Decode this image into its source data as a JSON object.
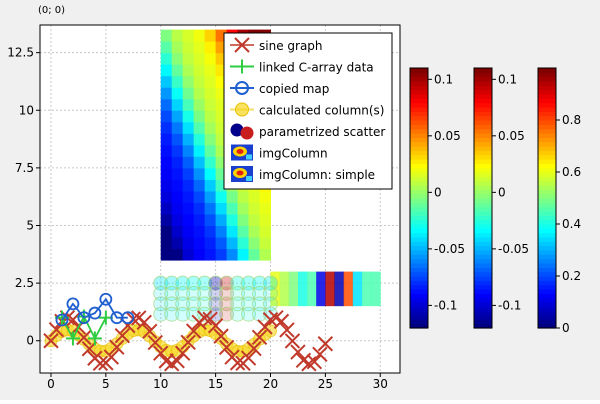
{
  "coordinate_readout": "(0; 0)",
  "chart_data": {
    "type": "scatter",
    "title": "",
    "xlabel": "",
    "ylabel": "",
    "xlim": [
      -1,
      31.8
    ],
    "ylim": [
      -1.4,
      13.7
    ],
    "grid": true,
    "x_ticks": [
      0,
      5,
      10,
      15,
      20,
      25,
      30
    ],
    "y_ticks": [
      0,
      2.5,
      5,
      7.5,
      10,
      12.5
    ],
    "x_tick_labels": [
      "0",
      "5",
      "10",
      "15",
      "20",
      "25",
      "30"
    ],
    "y_tick_labels": [
      "0",
      "2.5",
      "5",
      "7.5",
      "10",
      "12.5"
    ],
    "legend_position": "top-right",
    "colors": {
      "sine": "#c0392b",
      "linked": "#2ecc40",
      "copied": "#1f5fd0",
      "calculated": "#f7d51d",
      "scatter_a": "#00008b",
      "scatter_b": "#c81e1e"
    },
    "series": [
      {
        "name": "sine graph",
        "marker": "cross",
        "x": [
          0,
          0.5,
          1,
          1.5,
          2,
          2.5,
          3,
          3.5,
          4,
          4.5,
          5,
          5.5,
          6,
          6.5,
          7,
          7.5,
          8,
          8.5,
          9,
          9.5,
          10,
          10.5,
          11,
          11.5,
          12,
          12.5,
          13,
          13.5,
          14,
          14.5,
          15,
          15.5,
          16,
          16.5,
          17,
          17.5,
          18,
          18.5,
          19,
          19.5,
          20,
          20.5,
          21,
          21.5,
          22,
          22.5,
          23,
          23.5,
          24,
          24.5,
          25
        ],
        "y": [
          0,
          0.48,
          0.84,
          1.0,
          0.91,
          0.6,
          0.14,
          -0.35,
          -0.76,
          -0.98,
          -0.96,
          -0.71,
          -0.28,
          0.22,
          0.66,
          0.94,
          0.99,
          0.8,
          0.41,
          -0.08,
          -0.54,
          -0.88,
          -1.0,
          -0.87,
          -0.54,
          -0.07,
          0.42,
          0.8,
          0.99,
          0.93,
          0.65,
          0.2,
          -0.29,
          -0.71,
          -0.96,
          -0.98,
          -0.75,
          -0.34,
          0.15,
          0.6,
          0.91,
          1.0,
          0.84,
          0.47,
          -0.01,
          -0.49,
          -0.85,
          -1.0,
          -0.91,
          -0.59,
          -0.13
        ]
      },
      {
        "name": "linked C-array data",
        "marker": "plus",
        "x": [
          1,
          2,
          3,
          4,
          5
        ],
        "y": [
          1,
          0.1,
          1.05,
          0.1,
          1.0
        ]
      },
      {
        "name": "copied map",
        "marker": "circle",
        "x": [
          1,
          2,
          3,
          4,
          5,
          6,
          7
        ],
        "y": [
          0.9,
          1.6,
          1.0,
          1.2,
          1.8,
          1.0,
          1.0
        ]
      },
      {
        "name": "calculated column(s)",
        "marker": "filled-circle",
        "x": [
          0,
          0.5,
          1,
          1.5,
          2,
          2.5,
          3,
          3.5,
          4,
          4.5,
          5,
          5.5,
          6,
          6.5,
          7,
          7.5,
          8,
          8.5,
          9,
          9.5,
          10,
          10.5,
          11,
          11.5,
          12,
          12.5,
          13,
          13.5,
          14,
          14.5,
          15,
          15.5,
          16,
          16.5,
          17,
          17.5,
          18,
          18.5,
          19,
          19.5,
          20
        ],
        "y": [
          0,
          0.23,
          0.4,
          0.47,
          0.42,
          0.26,
          0.06,
          -0.16,
          -0.35,
          -0.45,
          -0.45,
          -0.33,
          -0.13,
          0.1,
          0.3,
          0.44,
          0.47,
          0.39,
          0.2,
          -0.04,
          -0.26,
          -0.42,
          -0.47,
          -0.41,
          -0.26,
          -0.03,
          0.2,
          0.39,
          0.47,
          0.44,
          0.31,
          0.1,
          -0.14,
          -0.34,
          -0.46,
          -0.46,
          -0.35,
          -0.16,
          0.07,
          0.28,
          0.43
        ]
      },
      {
        "name": "parametrized scatter",
        "marker": "sized-circle",
        "x": [
          10,
          11,
          12,
          13,
          14,
          15,
          16,
          17,
          18,
          19,
          20
        ],
        "y": [
          2.5,
          2.5,
          2.5,
          2.5,
          2.5,
          2.5,
          2.5,
          2.5,
          2.5,
          2.5,
          2.5
        ],
        "value": [
          0.3,
          0.35,
          0.4,
          0.45,
          0.5,
          0.0,
          1.0,
          0.55,
          0.45,
          0.4,
          0.35
        ]
      },
      {
        "name": "imgColumn",
        "marker": "image",
        "x_range": [
          10,
          20
        ],
        "y_range": [
          3.5,
          13.5
        ],
        "columns": 10,
        "rows": 20,
        "color_range": [
          -0.12,
          0.12
        ]
      },
      {
        "name": "imgColumn: simple",
        "marker": "image",
        "x_range": [
          20,
          30
        ],
        "y_range": [
          1.5,
          3.0
        ],
        "values": [
          0.6,
          0.55,
          0.5,
          0.4,
          0.45,
          0.1,
          0.95,
          0.05,
          0.8,
          0.35,
          0.45,
          0.45
        ]
      }
    ],
    "colorbars": [
      {
        "id": "cb1",
        "tick_values": [
          -0.1,
          -0.05,
          0,
          0.05,
          0.1
        ],
        "tick_labels": [
          "-0.1",
          "-0.05",
          "0",
          "0.05",
          "0.1"
        ],
        "range": [
          -0.12,
          0.11
        ]
      },
      {
        "id": "cb2",
        "tick_values": [
          -0.1,
          -0.05,
          0,
          0.05,
          0.1
        ],
        "tick_labels": [
          "-0.1",
          "-0.05",
          "0",
          "0.05",
          "0.1"
        ],
        "range": [
          -0.12,
          0.11
        ]
      },
      {
        "id": "cb3",
        "tick_values": [
          0,
          0.2,
          0.4,
          0.6,
          0.8
        ],
        "tick_labels": [
          "0",
          "0.2",
          "0.4",
          "0.6",
          "0.8"
        ],
        "range": [
          0,
          1
        ]
      }
    ],
    "legend": [
      {
        "label": "sine graph",
        "symbol": "sine"
      },
      {
        "label": "linked C-array data",
        "symbol": "linked"
      },
      {
        "label": "copied map",
        "symbol": "copied"
      },
      {
        "label": "calculated column(s)",
        "symbol": "calculated"
      },
      {
        "label": "parametrized scatter",
        "symbol": "scatter"
      },
      {
        "label": "imgColumn",
        "symbol": "image"
      },
      {
        "label": "imgColumn: simple",
        "symbol": "image"
      }
    ]
  }
}
